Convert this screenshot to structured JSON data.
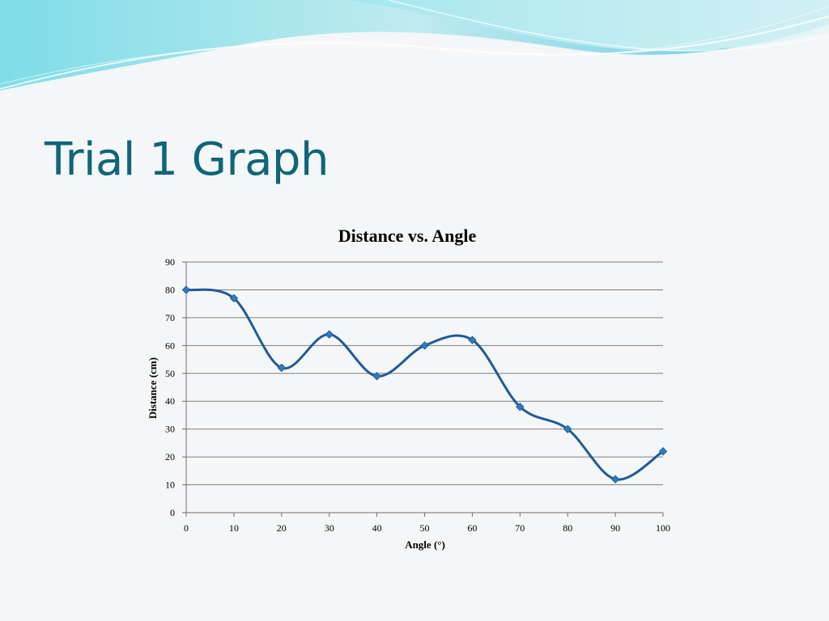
{
  "slide": {
    "title": "Trial 1 Graph",
    "title_color": "#0f6579"
  },
  "chart_data": {
    "type": "line",
    "title": "Distance vs. Angle",
    "xlabel": "Angle (°)",
    "ylabel": "Distance (cm)",
    "x": [
      0,
      10,
      20,
      30,
      40,
      50,
      60,
      70,
      80,
      90,
      100
    ],
    "series": [
      {
        "values": [
          80,
          77,
          52,
          64,
          49,
          60,
          62,
          38,
          30,
          12,
          22
        ]
      }
    ],
    "xlim": [
      0,
      100
    ],
    "ylim": [
      0,
      90
    ],
    "xticks": [
      "0",
      "10",
      "20",
      "30",
      "40",
      "50",
      "60",
      "70",
      "80",
      "90",
      "100"
    ],
    "yticks": [
      "0",
      "10",
      "20",
      "30",
      "40",
      "50",
      "60",
      "70",
      "80",
      "90"
    ],
    "smooth": true,
    "grid": true,
    "legend": "none",
    "colors": {
      "line": "#1f5b96",
      "marker": "#2f7ec4",
      "marker_stroke": "#1f5b96",
      "grid": "#7f7f7f",
      "axis": "#6f6f6f",
      "text": "#000000"
    }
  }
}
